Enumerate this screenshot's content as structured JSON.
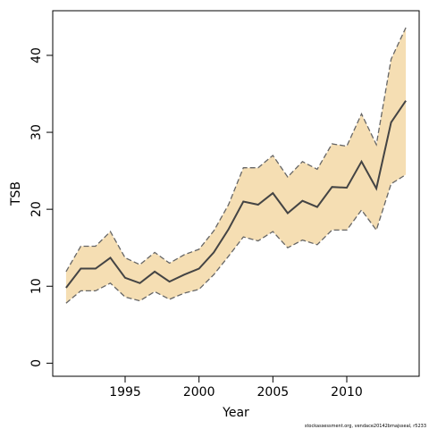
{
  "chart_data": {
    "type": "line",
    "xlabel": "Year",
    "ylabel": "TSB",
    "xlim": [
      1990.1,
      2014.9
    ],
    "ylim": [
      -1.7,
      45.8
    ],
    "x_ticks": [
      1995,
      2000,
      2005,
      2010
    ],
    "y_ticks": [
      0,
      10,
      20,
      30,
      40
    ],
    "grid": false,
    "band_color": "#F5DEB3",
    "line_color": "#444444",
    "x": [
      1991,
      1992,
      1993,
      1994,
      1995,
      1996,
      1997,
      1998,
      1999,
      2000,
      2001,
      2002,
      2003,
      2004,
      2005,
      2006,
      2007,
      2008,
      2009,
      2010,
      2011,
      2012,
      2013,
      2014
    ],
    "series": [
      {
        "role": "estimate",
        "values": [
          9.8,
          12.3,
          12.3,
          13.7,
          11.1,
          10.4,
          11.9,
          10.6,
          11.5,
          12.3,
          14.4,
          17.4,
          21.0,
          20.6,
          22.1,
          19.5,
          21.1,
          20.3,
          22.9,
          22.8,
          26.2,
          22.7,
          31.3,
          34.1
        ]
      },
      {
        "role": "upper",
        "values": [
          11.9,
          15.2,
          15.2,
          17.1,
          13.7,
          12.8,
          14.4,
          13.0,
          14.1,
          14.8,
          17.2,
          20.6,
          25.4,
          25.4,
          27.0,
          24.2,
          26.2,
          25.2,
          28.5,
          28.2,
          32.4,
          28.4,
          39.5,
          43.6
        ]
      },
      {
        "role": "lower",
        "values": [
          7.8,
          9.4,
          9.4,
          10.4,
          8.6,
          8.1,
          9.3,
          8.3,
          9.1,
          9.6,
          11.5,
          13.9,
          16.4,
          15.9,
          17.1,
          15.0,
          16.0,
          15.4,
          17.3,
          17.3,
          19.9,
          17.3,
          23.3,
          24.5
        ]
      }
    ]
  },
  "credit_text": "stockassessment.org, vendace20142bmajsseal, r5233"
}
